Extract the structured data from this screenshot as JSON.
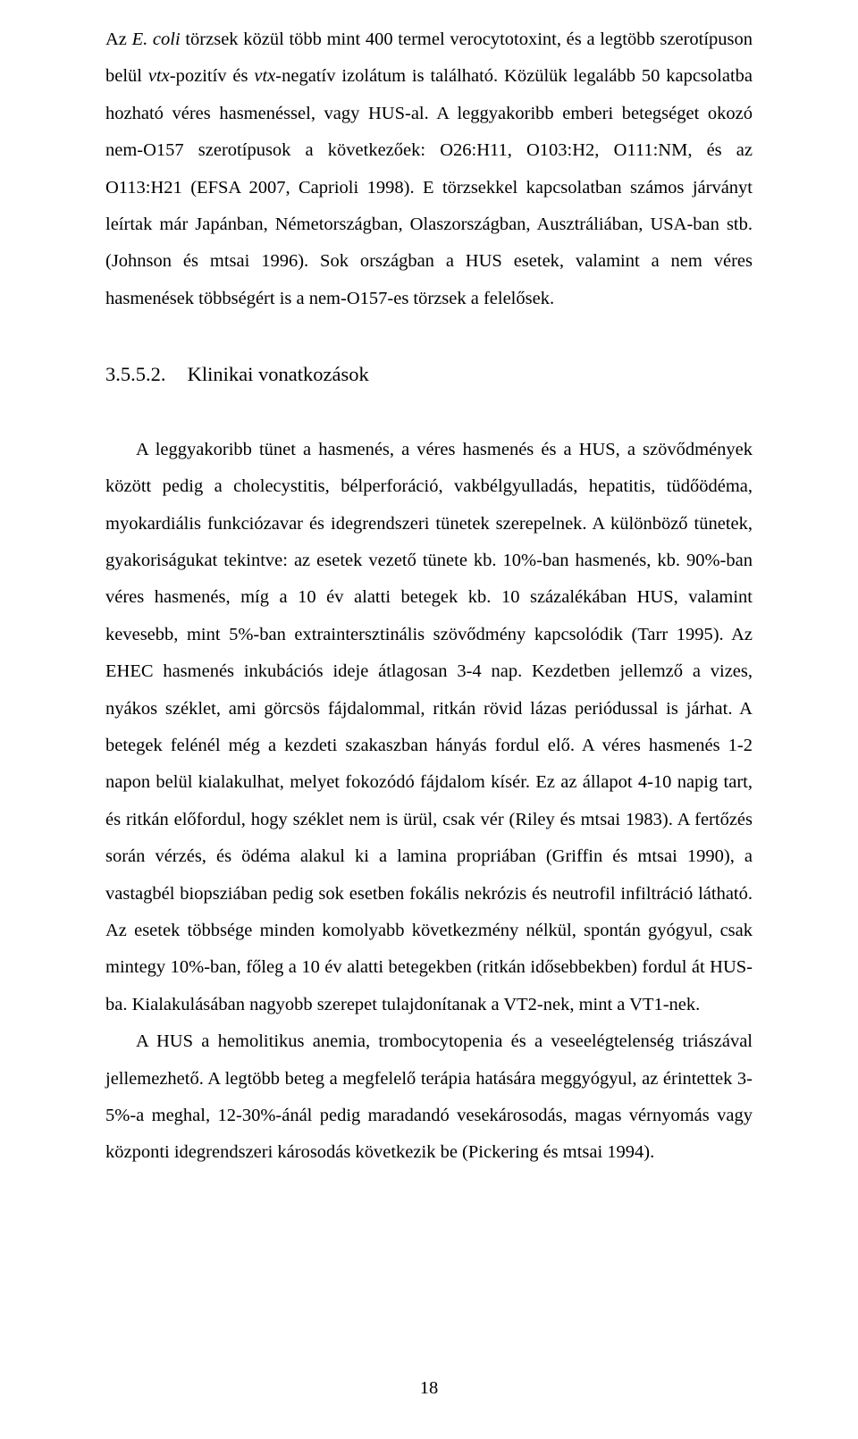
{
  "para1_a": "Az ",
  "para1_b": "E. coli",
  "para1_c": " törzsek közül több mint 400 termel verocytotoxint, és a legtöbb szerotípuson belül ",
  "para1_d": "vtx",
  "para1_e": "-pozitív és ",
  "para1_f": "vtx",
  "para1_g": "-negatív izolátum is található. Közülük legalább 50 kapcsolatba hozható véres hasmenéssel, vagy HUS-al. A leggyakoribb emberi betegséget okozó nem-O157 szerotípusok a következőek: O26:H11, O103:H2, O111:NM, és az O113:H21 (EFSA 2007, Caprioli 1998). E törzsekkel kapcsolatban számos járványt leírtak már Japánban, Németországban, Olaszországban, Ausztráliában, USA-ban stb. (Johnson és mtsai 1996). Sok országban a HUS esetek, valamint a nem véres hasmenések többségért is a nem-O157-es törzsek a felelősek.",
  "heading_num": "3.5.5.2.",
  "heading_title": "Klinikai vonatkozások",
  "para2": "A leggyakoribb tünet a hasmenés, a véres hasmenés és a HUS, a szövődmények között pedig a cholecystitis, bélperforáció, vakbélgyulladás, hepatitis, tüdőödéma, myokardiális funkciózavar és idegrendszeri tünetek szerepelnek. A különböző tünetek, gyakoriságukat tekintve: az esetek vezető tünete kb. 10%-ban hasmenés, kb. 90%-ban véres hasmenés, míg a 10 év alatti betegek kb. 10 százalékában HUS, valamint kevesebb, mint 5%-ban extraintersztinális szövődmény kapcsolódik (Tarr 1995). Az EHEC hasmenés inkubációs ideje átlagosan 3-4 nap. Kezdetben jellemző a vizes, nyákos széklet, ami görcsös fájdalommal, ritkán rövid lázas periódussal is járhat. A betegek felénél még a kezdeti szakaszban hányás fordul elő. A véres hasmenés 1-2 napon belül kialakulhat, melyet fokozódó fájdalom kísér. Ez az állapot 4-10 napig tart, és ritkán előfordul, hogy széklet nem is ürül, csak vér (Riley és mtsai 1983). A fertőzés során vérzés, és ödéma alakul ki a lamina propriában (Griffin és mtsai 1990), a vastagbél biopsziában pedig sok esetben fokális nekrózis és neutrofil infiltráció látható. Az esetek többsége minden komolyabb következmény nélkül, spontán gyógyul, csak mintegy 10%-ban, főleg a 10 év alatti betegekben (ritkán idősebbekben) fordul át HUS-ba. Kialakulásában nagyobb szerepet tulajdonítanak a VT2-nek, mint a VT1-nek.",
  "para3": "A HUS a hemolitikus anemia, trombocytopenia és a veseelégtelenség triászával jellemezhető. A legtöbb beteg a megfelelő terápia hatására meggyógyul, az érintettek 3-5%-a meghal, 12-30%-ánál pedig maradandó vesekárosodás, magas vérnyomás vagy központi idegrendszeri károsodás következik be (Pickering és mtsai 1994).",
  "page_number": "18"
}
